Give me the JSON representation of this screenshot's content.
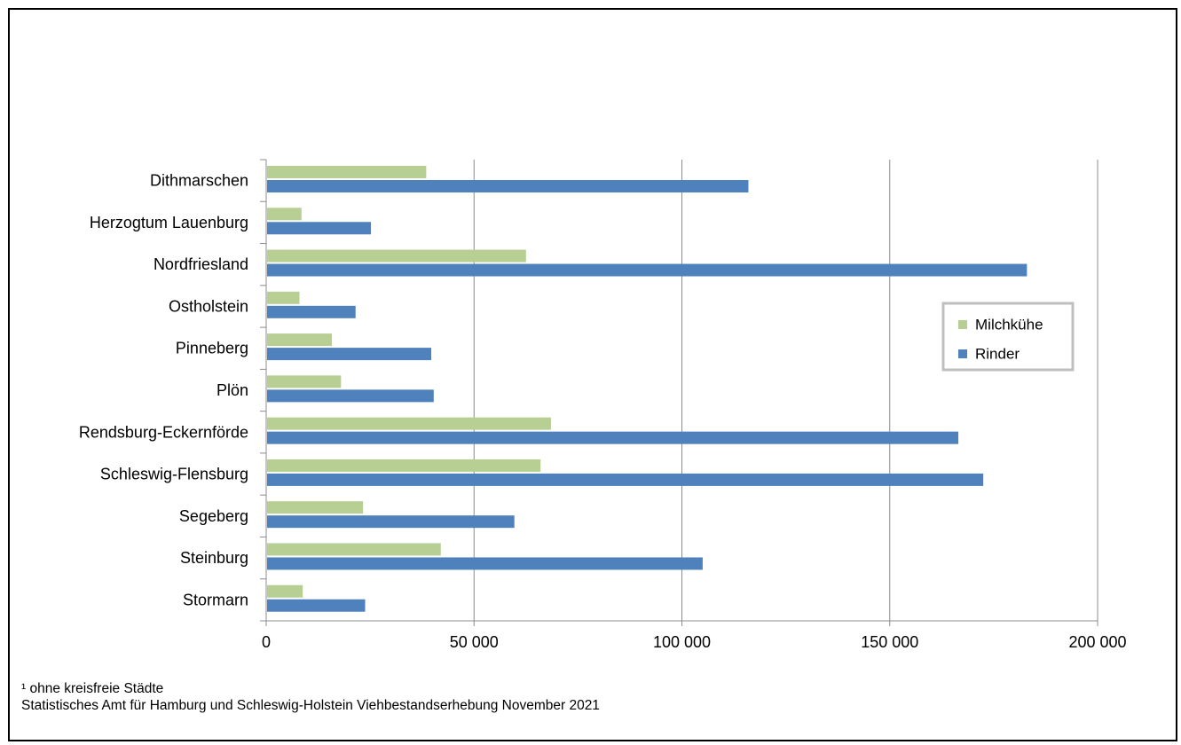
{
  "chart_data": {
    "type": "bar",
    "orientation": "horizontal",
    "categories": [
      "Dithmarschen",
      "Herzogtum Lauenburg",
      "Nordfriesland",
      "Ostholstein",
      "Pinneberg",
      "Plön",
      "Rendsburg-Eckernförde",
      "Schleswig-Flensburg",
      "Segeberg",
      "Steinburg",
      "Stormarn"
    ],
    "series": [
      {
        "name": "Milchkühe",
        "color": "#b7cf93",
        "values": [
          38500,
          8500,
          62500,
          8000,
          15800,
          18000,
          68500,
          66000,
          23300,
          42000,
          8800
        ]
      },
      {
        "name": "Rinder",
        "color": "#4f81bd",
        "values": [
          116000,
          25200,
          183000,
          21500,
          39700,
          40300,
          166500,
          172500,
          59700,
          105000,
          23800
        ]
      }
    ],
    "xlim": [
      0,
      200000
    ],
    "xticks": [
      0,
      50000,
      100000,
      150000,
      200000
    ],
    "xtick_labels": [
      "0",
      "50 000",
      "100 000",
      "150 000",
      "200 000"
    ],
    "grid": true,
    "legend_position": "right"
  },
  "footnotes": {
    "line1": "¹ ohne kreisfreie Städte",
    "line2": "Statistisches Amt für Hamburg und Schleswig-Holstein Viehbestandserhebung November 2021"
  }
}
